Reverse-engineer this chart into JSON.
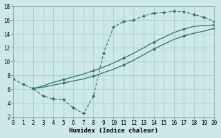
{
  "xlabel": "Humidex (Indice chaleur)",
  "xlim": [
    0,
    20
  ],
  "ylim": [
    2,
    18
  ],
  "xticks": [
    0,
    1,
    2,
    3,
    4,
    5,
    6,
    7,
    8,
    9,
    10,
    11,
    12,
    13,
    14,
    15,
    16,
    17,
    18,
    19,
    20
  ],
  "yticks": [
    2,
    4,
    6,
    8,
    10,
    12,
    14,
    16,
    18
  ],
  "bg_color": "#cce8e8",
  "grid_color": "#b0d0d0",
  "line_color": "#2d7068",
  "zigzag_x": [
    0,
    1,
    2,
    3,
    4,
    5,
    6,
    7,
    8,
    9,
    10,
    11,
    12,
    13,
    14,
    15,
    16,
    17,
    18,
    19,
    20
  ],
  "zigzag_y": [
    7.5,
    6.7,
    6.1,
    5.0,
    4.6,
    4.5,
    3.3,
    2.5,
    5.0,
    11.2,
    15.0,
    15.8,
    16.0,
    16.6,
    17.0,
    17.1,
    17.3,
    17.2,
    16.8,
    16.4,
    15.8
  ],
  "line_upper_x": [
    2,
    3,
    4,
    5,
    6,
    7,
    8,
    9,
    10,
    11,
    12,
    13,
    14,
    15,
    16,
    17,
    18,
    19,
    20
  ],
  "line_upper_y": [
    6.1,
    6.5,
    7.0,
    7.4,
    7.8,
    8.2,
    8.7,
    9.2,
    9.8,
    10.5,
    11.2,
    12.0,
    12.8,
    13.5,
    14.2,
    14.7,
    15.1,
    15.2,
    15.3
  ],
  "line_lower_x": [
    2,
    3,
    4,
    5,
    6,
    7,
    8,
    9,
    10,
    11,
    12,
    13,
    14,
    15,
    16,
    17,
    18,
    19,
    20
  ],
  "line_lower_y": [
    6.1,
    6.3,
    6.6,
    6.9,
    7.2,
    7.5,
    7.9,
    8.4,
    8.9,
    9.5,
    10.2,
    11.0,
    11.8,
    12.5,
    13.2,
    13.7,
    14.1,
    14.4,
    14.8
  ]
}
